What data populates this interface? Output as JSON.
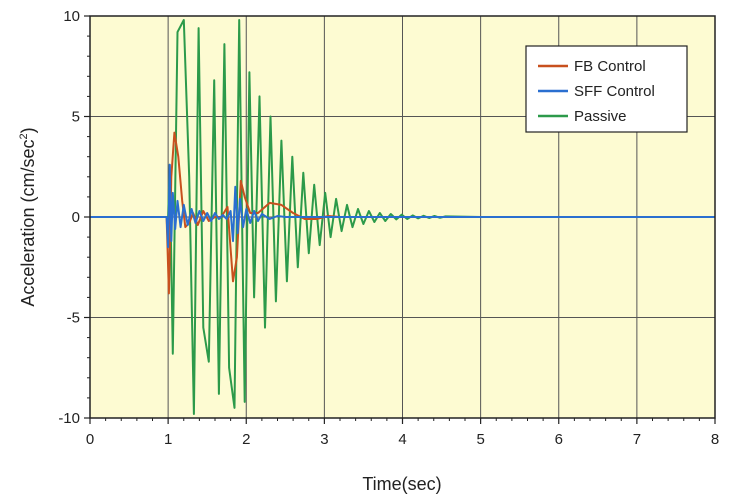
{
  "chart_data": {
    "type": "line",
    "title": "",
    "xlabel": "Time(sec)",
    "ylabel": "Acceleration (cm/sec",
    "ylabel_sup": "2",
    "ylabel_end": ")",
    "xlim": [
      0,
      8
    ],
    "ylim": [
      -10,
      10
    ],
    "xticks": [
      0,
      1,
      2,
      3,
      4,
      5,
      6,
      7,
      8
    ],
    "yticks": [
      -10,
      -5,
      0,
      5,
      10
    ],
    "grid": true,
    "legend_position": "top-right",
    "colors": {
      "plot_background": "#fdfbd2",
      "grid": "#555555",
      "axis": "#222222",
      "legend_background": "#ffffff"
    },
    "series": [
      {
        "name": "Passive",
        "color": "#2c9a4a",
        "x": [
          0,
          1.0,
          1.02,
          1.06,
          1.12,
          1.2,
          1.27,
          1.33,
          1.39,
          1.45,
          1.52,
          1.59,
          1.65,
          1.72,
          1.78,
          1.85,
          1.91,
          1.98,
          2.04,
          2.1,
          2.17,
          2.24,
          2.31,
          2.38,
          2.45,
          2.52,
          2.59,
          2.66,
          2.73,
          2.8,
          2.87,
          2.94,
          3.01,
          3.08,
          3.15,
          3.22,
          3.29,
          3.36,
          3.43,
          3.5,
          3.57,
          3.64,
          3.71,
          3.78,
          3.85,
          3.92,
          3.99,
          4.06,
          4.13,
          4.2,
          4.27,
          4.34,
          4.41,
          4.48,
          4.55,
          5.0,
          8.0
        ],
        "values": [
          0,
          0,
          2.6,
          -6.8,
          9.2,
          9.8,
          2.0,
          -9.8,
          9.4,
          -5.5,
          -7.2,
          6.8,
          -8.8,
          8.6,
          -7.5,
          -9.5,
          9.8,
          -9.2,
          7.2,
          -4.0,
          6.0,
          -5.5,
          5.0,
          -4.2,
          3.8,
          -3.2,
          3.0,
          -2.5,
          2.2,
          -1.8,
          1.6,
          -1.4,
          1.2,
          -1.0,
          0.9,
          -0.7,
          0.6,
          -0.5,
          0.4,
          -0.35,
          0.3,
          -0.25,
          0.2,
          -0.2,
          0.15,
          -0.12,
          0.12,
          -0.1,
          0.08,
          -0.07,
          0.06,
          -0.05,
          0.05,
          -0.04,
          0.03,
          0.0,
          0.0
        ]
      },
      {
        "name": "FB Control",
        "color": "#c8501e",
        "x": [
          0,
          0.98,
          1.01,
          1.04,
          1.08,
          1.13,
          1.18,
          1.22,
          1.27,
          1.32,
          1.38,
          1.45,
          1.52,
          1.6,
          1.68,
          1.76,
          1.83,
          1.88,
          1.93,
          1.98,
          2.05,
          2.15,
          2.3,
          2.45,
          2.6,
          2.75,
          2.9,
          3.05,
          3.2,
          8.0
        ],
        "values": [
          0,
          0,
          -3.8,
          2.0,
          4.2,
          3.0,
          0.8,
          -0.5,
          -0.3,
          0.2,
          -0.4,
          0.3,
          -0.2,
          0.0,
          0.0,
          0.5,
          -3.2,
          -2.0,
          1.8,
          1.0,
          0.2,
          0.2,
          0.7,
          0.6,
          0.2,
          -0.1,
          -0.1,
          0.05,
          0.0,
          0.0
        ]
      },
      {
        "name": "SFF Control",
        "color": "#2a6fd0",
        "x": [
          0,
          0.98,
          1.0,
          1.02,
          1.04,
          1.06,
          1.09,
          1.12,
          1.16,
          1.2,
          1.25,
          1.3,
          1.35,
          1.4,
          1.45,
          1.5,
          1.55,
          1.6,
          1.65,
          1.7,
          1.75,
          1.8,
          1.83,
          1.86,
          1.89,
          1.92,
          1.96,
          2.0,
          2.05,
          2.1,
          2.15,
          2.2,
          2.3,
          2.4,
          2.5,
          2.6,
          2.7,
          8.0
        ],
        "values": [
          0,
          0,
          -1.5,
          2.6,
          -1.2,
          1.2,
          -0.6,
          0.8,
          -0.5,
          0.6,
          -0.4,
          0.4,
          -0.3,
          0.3,
          -0.2,
          0.2,
          -0.2,
          0.2,
          -0.1,
          0.1,
          -0.1,
          0.3,
          -1.2,
          1.5,
          -0.8,
          0.9,
          -0.5,
          0.4,
          -0.3,
          0.3,
          -0.2,
          0.15,
          -0.1,
          0.05,
          0.0,
          0.0,
          0.0,
          0.0
        ]
      }
    ]
  }
}
